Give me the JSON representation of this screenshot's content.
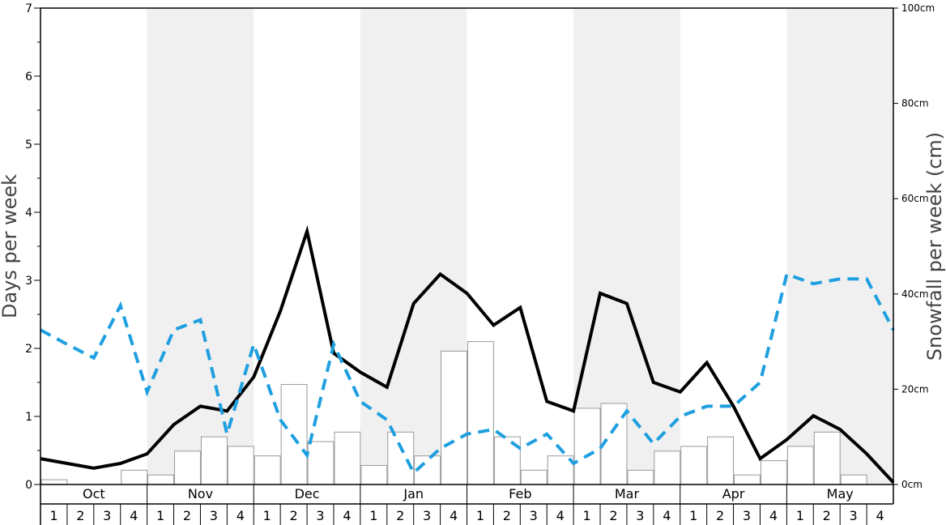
{
  "chart_data": {
    "type": "bar",
    "months": [
      "Oct",
      "Nov",
      "Dec",
      "Jan",
      "Feb",
      "Mar",
      "Apr",
      "May"
    ],
    "weeks": [
      "1",
      "2",
      "3",
      "4"
    ],
    "ylabel_left": "Days per week",
    "ylabel_right": "Snowfall per week (cm)",
    "ylim_left": [
      0,
      7
    ],
    "ylim_right": [
      0,
      100
    ],
    "left_ticks": [
      "0",
      "1",
      "2",
      "3",
      "4",
      "5",
      "6",
      "7"
    ],
    "right_ticks": [
      "0cm",
      "20cm",
      "40cm",
      "60cm",
      "80cm",
      "100cm"
    ],
    "shaded_months": [
      "Nov",
      "Jan",
      "Mar",
      "May"
    ],
    "colors": {
      "shade": "#f0f0f0",
      "bar_fill": "#ffffff",
      "bar_stroke": "#999999",
      "snow_days_line": "#000000",
      "dashed_line": "#1e9fe0"
    },
    "series": [
      {
        "type": "bar",
        "axis": "right",
        "values": [
          1,
          0,
          0,
          3,
          2,
          7,
          10,
          8,
          6,
          21,
          9,
          11,
          4,
          11,
          6,
          28,
          30,
          10,
          3,
          6,
          16,
          17,
          3,
          7,
          8,
          10,
          2,
          5,
          8,
          11,
          2,
          0
        ]
      },
      {
        "type": "line",
        "axis": "left",
        "style": "solid",
        "values": [
          0.38,
          0.31,
          0.24,
          0.31,
          0.45,
          0.88,
          1.15,
          1.08,
          1.58,
          2.55,
          3.72,
          1.93,
          1.65,
          1.43,
          2.66,
          3.09,
          2.81,
          2.34,
          2.6,
          1.22,
          1.08,
          2.81,
          2.66,
          1.5,
          1.36,
          1.79,
          1.15,
          0.38,
          0.66,
          1.01,
          0.81,
          0.45,
          0.03
        ]
      },
      {
        "type": "line",
        "axis": "left",
        "style": "dashed",
        "values": [
          2.27,
          2.06,
          1.86,
          2.63,
          1.36,
          2.27,
          2.42,
          0.74,
          2.06,
          0.95,
          0.43,
          2.06,
          1.22,
          0.95,
          0.17,
          0.53,
          0.74,
          0.81,
          0.53,
          0.74,
          0.31,
          0.53,
          1.08,
          0.6,
          1.0,
          1.15,
          1.15,
          1.5,
          3.09,
          2.95,
          3.02,
          3.02,
          2.27
        ]
      }
    ]
  }
}
